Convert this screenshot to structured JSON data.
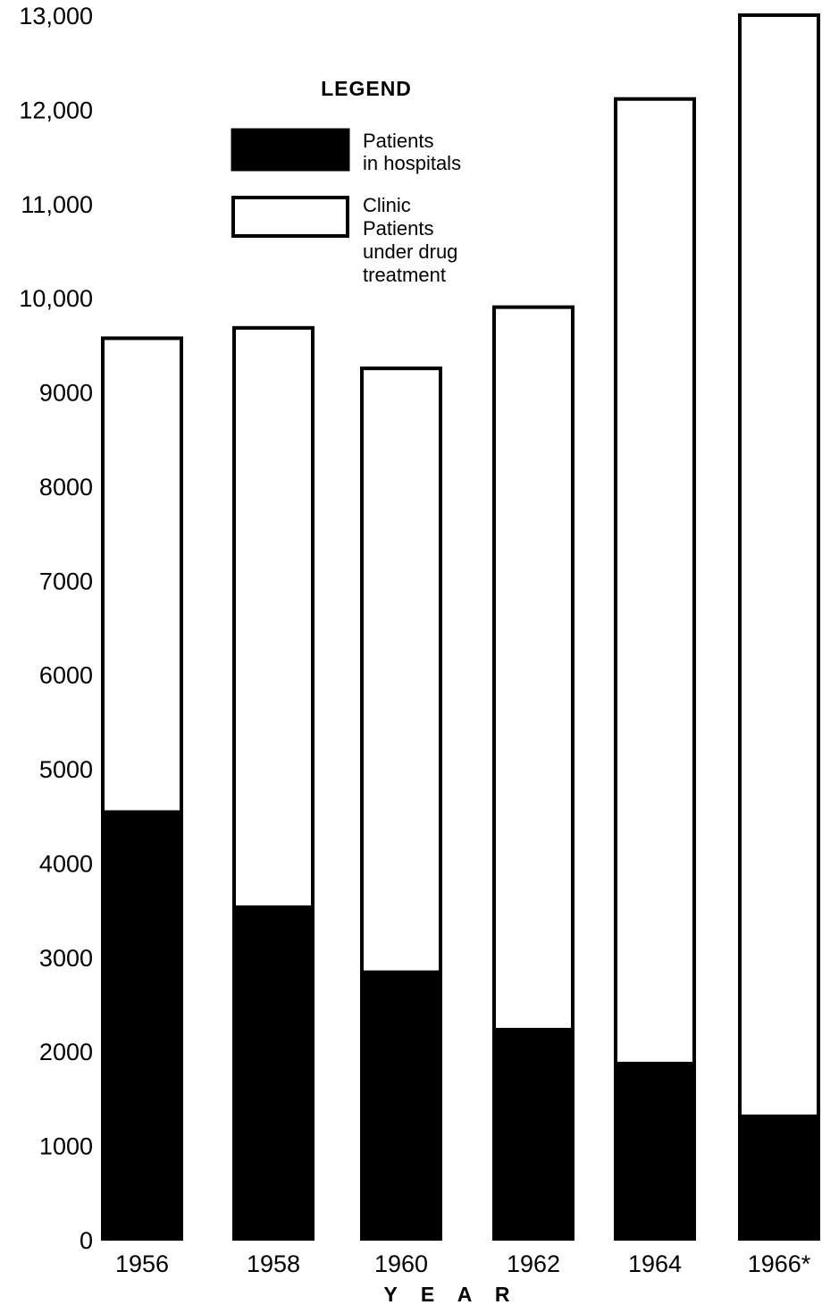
{
  "chart_data": {
    "type": "bar",
    "stacked": true,
    "categories": [
      "1956",
      "1958",
      "1960",
      "1962",
      "1964",
      "1966*"
    ],
    "series": [
      {
        "name": "Patients in hospitals",
        "color": "#000000",
        "values": [
          4550,
          3540,
          2850,
          2240,
          1880,
          1320
        ]
      },
      {
        "name": "Clinic Patients under drug treatment",
        "color": "#ffffff",
        "values": [
          5030,
          6150,
          6410,
          7670,
          10240,
          11690
        ]
      }
    ],
    "totals": [
      9580,
      9690,
      9260,
      9910,
      12120,
      13010
    ],
    "yticks": [
      "0",
      "1000",
      "2000",
      "3000",
      "4000",
      "5000",
      "6000",
      "7000",
      "8000",
      "9000",
      "10,000",
      "11,000",
      "12,000",
      "13,000"
    ],
    "ylim": [
      0,
      13000
    ],
    "xlabel": "Y E A R",
    "ylabel": "",
    "title": "",
    "grid": false,
    "legend": {
      "title": "LEGEND",
      "placement": "top-center",
      "entries": [
        {
          "lines": [
            "Patients",
            "in hospitals"
          ],
          "swatch": "filled"
        },
        {
          "lines": [
            "Clinic",
            "Patients",
            "under drug",
            "treatment"
          ],
          "swatch": "outline"
        }
      ]
    }
  }
}
